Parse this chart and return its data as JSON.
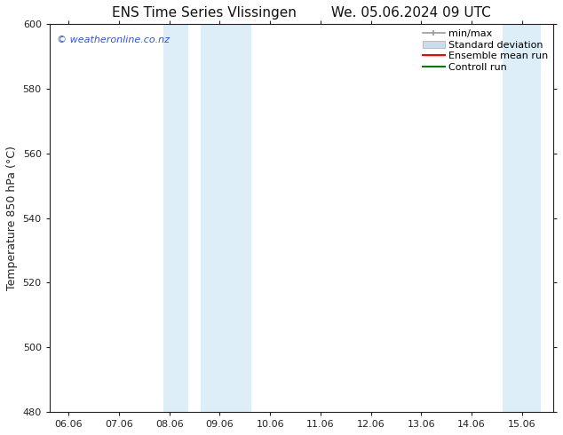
{
  "title_left": "ENS Time Series Vlissingen",
  "title_right": "We. 05.06.2024 09 UTC",
  "ylabel": "Temperature 850 hPa (°C)",
  "xlim_dates": [
    "06.06",
    "07.06",
    "08.06",
    "09.06",
    "10.06",
    "11.06",
    "12.06",
    "13.06",
    "14.06",
    "15.06"
  ],
  "ylim": [
    480,
    600
  ],
  "yticks": [
    480,
    500,
    520,
    540,
    560,
    580,
    600
  ],
  "shaded_regions": [
    {
      "xstart": 7.88,
      "xend": 8.38,
      "color": "#ddeef8"
    },
    {
      "xstart": 8.62,
      "xend": 9.62,
      "color": "#ddeef8"
    },
    {
      "xstart": 14.62,
      "xend": 15.12,
      "color": "#ddeef8"
    },
    {
      "xstart": 15.12,
      "xend": 15.38,
      "color": "#ddeef8"
    }
  ],
  "watermark_text": "© weatheronline.co.nz",
  "watermark_color": "#3355cc",
  "legend_entries": [
    {
      "label": "min/max",
      "color": "#999999",
      "style": "line_with_caps"
    },
    {
      "label": "Standard deviation",
      "color": "#c8dded",
      "style": "bar"
    },
    {
      "label": "Ensemble mean run",
      "color": "red",
      "style": "line"
    },
    {
      "label": "Controll run",
      "color": "green",
      "style": "line"
    }
  ],
  "bg_color": "white",
  "spine_color": "#222222",
  "tick_color": "#222222",
  "font_size_title": 11,
  "font_size_axis": 9,
  "font_size_tick": 8,
  "font_size_legend": 8,
  "font_size_watermark": 8
}
